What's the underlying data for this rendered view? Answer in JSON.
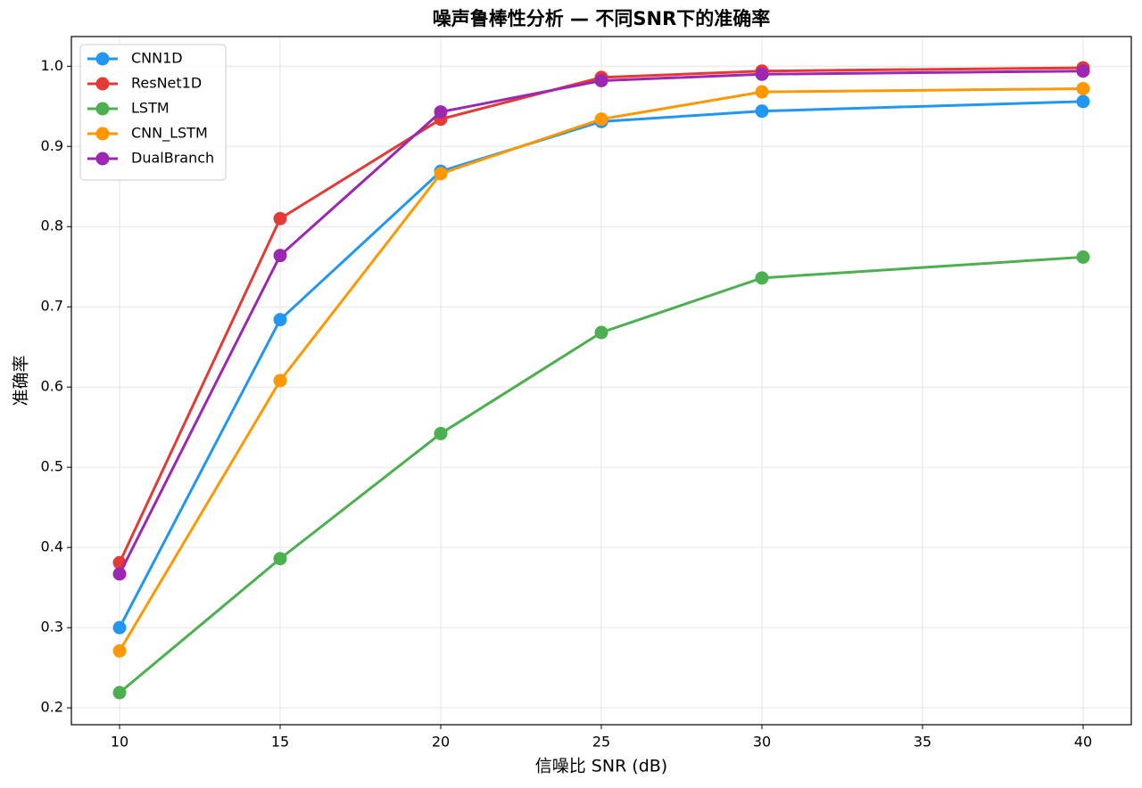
{
  "chart_data": {
    "type": "line",
    "title": "噪声鲁棒性分析 — 不同SNR下的准确率",
    "x_label": "信噪比 SNR (dB)",
    "y_label": "准确率",
    "x": [
      10,
      15,
      20,
      25,
      30,
      40
    ],
    "series": [
      {
        "name": "CNN1D",
        "color": "#2196f3",
        "values": [
          0.3,
          0.684,
          0.869,
          0.931,
          0.944,
          0.956
        ]
      },
      {
        "name": "ResNet1D",
        "color": "#e53935",
        "values": [
          0.381,
          0.81,
          0.934,
          0.986,
          0.994,
          0.998
        ]
      },
      {
        "name": "LSTM",
        "color": "#4caf50",
        "values": [
          0.219,
          0.386,
          0.542,
          0.668,
          0.736,
          0.762
        ]
      },
      {
        "name": "CNN_LSTM",
        "color": "#ff9800",
        "values": [
          0.271,
          0.608,
          0.866,
          0.934,
          0.968,
          0.972
        ]
      },
      {
        "name": "DualBranch",
        "color": "#9c27b0",
        "values": [
          0.367,
          0.764,
          0.943,
          0.982,
          0.99,
          0.994
        ]
      }
    ],
    "xlim": [
      8.5,
      41.5
    ],
    "ylim": [
      0.179,
      1.037
    ],
    "xticks": [
      10,
      15,
      20,
      25,
      30,
      35,
      40
    ],
    "yticks": [
      0.2,
      0.3,
      0.4,
      0.5,
      0.6,
      0.7,
      0.8,
      0.9,
      {
        "value": 1,
        "label": "1.0"
      }
    ],
    "grid": true,
    "legend": "upper-left"
  }
}
